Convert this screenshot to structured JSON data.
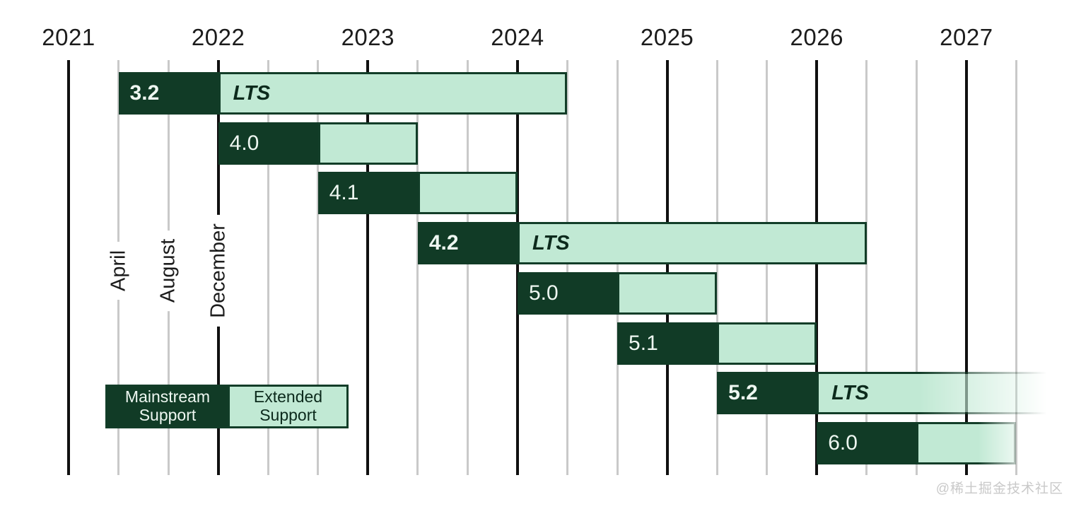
{
  "watermark": "@稀土掘金技术社区",
  "chart_data": {
    "type": "gantt",
    "x_axis": {
      "year_ticks": [
        "2021",
        "2022",
        "2023",
        "2024",
        "2025",
        "2026",
        "2027"
      ],
      "month_tick_labels": [
        "April",
        "August",
        "December"
      ],
      "months_per_slot": 4,
      "slots_per_year": 3,
      "grid": "on"
    },
    "legend": {
      "mainstream": "Mainstream Support",
      "extended": "Extended Support"
    },
    "colors": {
      "mainstream_fill": "#113b26",
      "extended_fill": "#c1e9d4",
      "extended_border": "#123d28",
      "grid_major": "#101010",
      "grid_minor": "#c9c9c9"
    },
    "bars": [
      {
        "version": "3.2",
        "lts": true,
        "extended_label": "LTS",
        "mainstream_slots": [
          1,
          3
        ],
        "extended_slots": [
          3,
          10
        ],
        "fade": "none"
      },
      {
        "version": "4.0",
        "lts": false,
        "extended_label": "",
        "mainstream_slots": [
          3,
          5
        ],
        "extended_slots": [
          5,
          7
        ],
        "fade": "none"
      },
      {
        "version": "4.1",
        "lts": false,
        "extended_label": "",
        "mainstream_slots": [
          5,
          7
        ],
        "extended_slots": [
          7,
          9
        ],
        "fade": "none"
      },
      {
        "version": "4.2",
        "lts": true,
        "extended_label": "LTS",
        "mainstream_slots": [
          7,
          9
        ],
        "extended_slots": [
          9,
          16
        ],
        "fade": "none"
      },
      {
        "version": "5.0",
        "lts": false,
        "extended_label": "",
        "mainstream_slots": [
          9,
          11
        ],
        "extended_slots": [
          11,
          13
        ],
        "fade": "none"
      },
      {
        "version": "5.1",
        "lts": false,
        "extended_label": "",
        "mainstream_slots": [
          11,
          13
        ],
        "extended_slots": [
          13,
          15
        ],
        "fade": "none"
      },
      {
        "version": "5.2",
        "lts": true,
        "extended_label": "LTS",
        "mainstream_slots": [
          13,
          15
        ],
        "extended_slots": [
          15,
          19.9
        ],
        "fade": "long"
      },
      {
        "version": "6.0",
        "lts": false,
        "extended_label": "",
        "mainstream_slots": [
          15,
          17
        ],
        "extended_slots": [
          17,
          19
        ],
        "fade": "edge"
      }
    ]
  }
}
